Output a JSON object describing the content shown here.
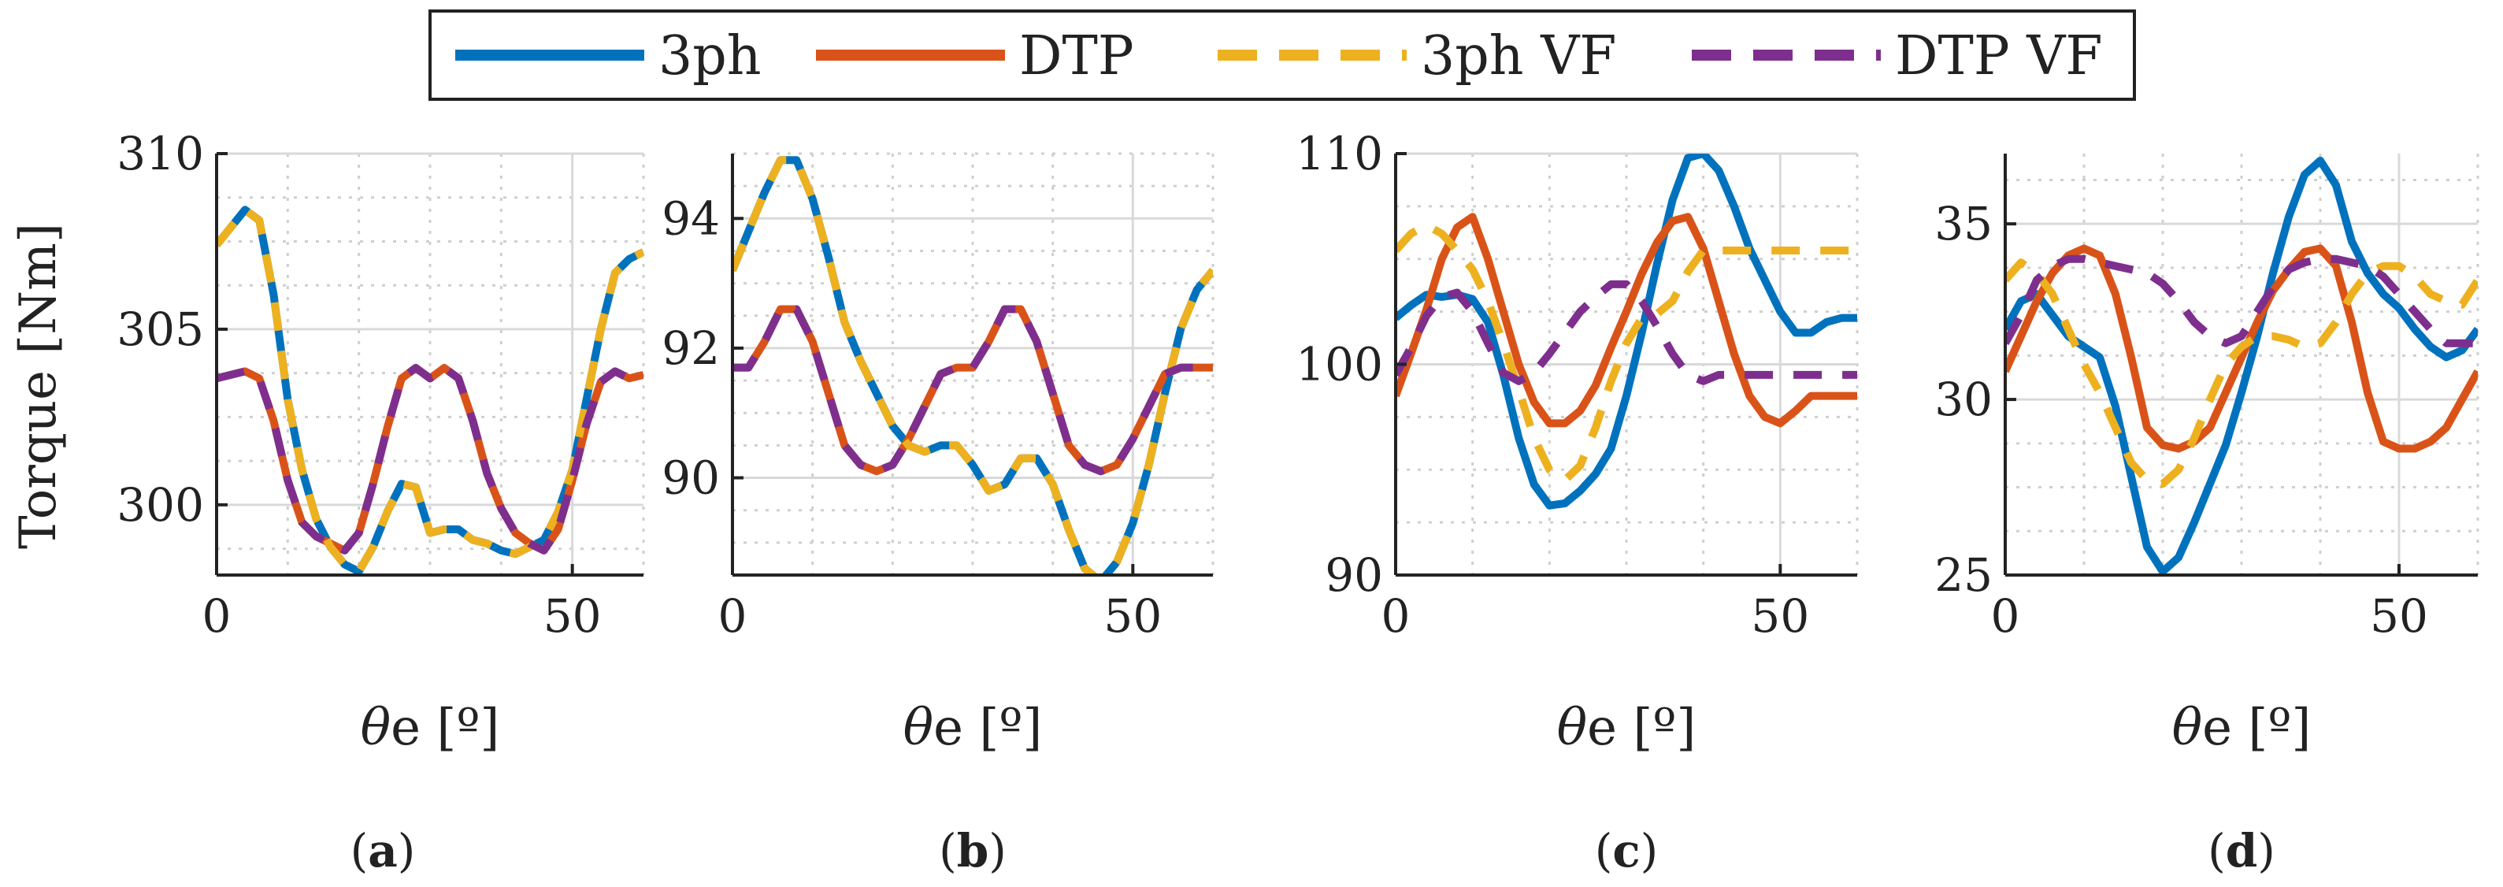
{
  "legend": {
    "entries": [
      {
        "label": "3ph",
        "color": "#0072BD",
        "dash": "solid"
      },
      {
        "label": "DTP",
        "color": "#D95319",
        "dash": "solid"
      },
      {
        "label": "3ph VF",
        "color": "#EDB120",
        "dash": "dashed"
      },
      {
        "label": "DTP VF",
        "color": "#7E2F8E",
        "dash": "dashed"
      }
    ]
  },
  "chart_data": [
    {
      "type": "line",
      "panel_label": "a",
      "ylabel": "Torque [Nm]",
      "xlabel_symbol": "θ",
      "xlabel_rest": "e [º]",
      "xlim": [
        0,
        60
      ],
      "ylim": [
        298,
        310
      ],
      "xticks": [
        0,
        50
      ],
      "yticks": [
        300,
        305,
        310
      ],
      "grid": true,
      "x": [
        0,
        4,
        6,
        8,
        10,
        12,
        14,
        16,
        18,
        20,
        22,
        24,
        26,
        28,
        30,
        32,
        34,
        36,
        38,
        40,
        42,
        44,
        46,
        48,
        50,
        52,
        54,
        56,
        58,
        60
      ],
      "series": [
        {
          "name": "3ph",
          "values": [
            307.4,
            308.4,
            308.1,
            306.0,
            303.0,
            301.0,
            299.6,
            298.8,
            298.3,
            298.1,
            298.8,
            299.8,
            300.6,
            300.5,
            299.2,
            299.3,
            299.3,
            299.0,
            298.9,
            298.7,
            298.6,
            298.8,
            299.0,
            299.8,
            301.0,
            303.0,
            305.0,
            306.6,
            307.0,
            307.2
          ]
        },
        {
          "name": "DTP",
          "values": [
            303.6,
            303.8,
            303.6,
            302.4,
            300.7,
            299.5,
            299.1,
            298.9,
            298.7,
            299.2,
            300.6,
            302.2,
            303.6,
            303.9,
            303.6,
            303.9,
            303.6,
            302.4,
            300.9,
            299.9,
            299.2,
            298.9,
            298.7,
            299.3,
            300.7,
            302.3,
            303.5,
            303.8,
            303.6,
            303.7
          ]
        },
        {
          "name": "3ph VF",
          "values": [
            307.4,
            308.4,
            308.1,
            306.0,
            303.0,
            301.0,
            299.6,
            298.8,
            298.3,
            298.1,
            298.8,
            299.8,
            300.6,
            300.5,
            299.2,
            299.3,
            299.3,
            299.0,
            298.9,
            298.7,
            298.6,
            298.8,
            299.0,
            299.8,
            301.0,
            303.0,
            305.0,
            306.6,
            307.0,
            307.2
          ]
        },
        {
          "name": "DTP VF",
          "values": [
            303.6,
            303.8,
            303.6,
            302.4,
            300.7,
            299.5,
            299.1,
            298.9,
            298.7,
            299.2,
            300.6,
            302.2,
            303.6,
            303.9,
            303.6,
            303.9,
            303.6,
            302.4,
            300.9,
            299.9,
            299.2,
            298.9,
            298.7,
            299.3,
            300.7,
            302.3,
            303.5,
            303.8,
            303.6,
            303.7
          ]
        }
      ]
    },
    {
      "type": "line",
      "panel_label": "b",
      "ylabel": "",
      "xlabel_symbol": "θ",
      "xlabel_rest": "e [º]",
      "xlim": [
        0,
        60
      ],
      "ylim": [
        88.5,
        95
      ],
      "xticks": [
        0,
        50
      ],
      "yticks": [
        90,
        92,
        94
      ],
      "grid": true,
      "x": [
        0,
        2,
        4,
        6,
        8,
        10,
        12,
        14,
        16,
        18,
        20,
        22,
        24,
        26,
        28,
        30,
        32,
        34,
        36,
        38,
        40,
        42,
        44,
        46,
        48,
        50,
        52,
        54,
        56,
        58,
        60
      ],
      "series": [
        {
          "name": "3ph",
          "values": [
            93.2,
            93.8,
            94.4,
            94.9,
            94.9,
            94.3,
            93.4,
            92.4,
            91.8,
            91.3,
            90.8,
            90.5,
            90.4,
            90.5,
            90.5,
            90.2,
            89.8,
            89.9,
            90.3,
            90.3,
            89.9,
            89.2,
            88.6,
            88.4,
            88.7,
            89.3,
            90.2,
            91.3,
            92.3,
            92.9,
            93.2
          ]
        },
        {
          "name": "DTP",
          "values": [
            91.7,
            91.7,
            92.1,
            92.6,
            92.6,
            92.1,
            91.3,
            90.5,
            90.2,
            90.1,
            90.2,
            90.6,
            91.1,
            91.6,
            91.7,
            91.7,
            92.1,
            92.6,
            92.6,
            92.1,
            91.3,
            90.5,
            90.2,
            90.1,
            90.2,
            90.6,
            91.1,
            91.6,
            91.7,
            91.7,
            91.7
          ]
        },
        {
          "name": "3ph VF",
          "values": [
            93.2,
            93.8,
            94.4,
            94.9,
            94.9,
            94.3,
            93.4,
            92.4,
            91.8,
            91.3,
            90.8,
            90.5,
            90.4,
            90.5,
            90.5,
            90.2,
            89.8,
            89.9,
            90.3,
            90.3,
            89.9,
            89.2,
            88.6,
            88.4,
            88.7,
            89.3,
            90.2,
            91.3,
            92.3,
            92.9,
            93.2
          ]
        },
        {
          "name": "DTP VF",
          "values": [
            91.7,
            91.7,
            92.1,
            92.6,
            92.6,
            92.1,
            91.3,
            90.5,
            90.2,
            90.1,
            90.2,
            90.6,
            91.1,
            91.6,
            91.7,
            91.7,
            92.1,
            92.6,
            92.6,
            92.1,
            91.3,
            90.5,
            90.2,
            90.1,
            90.2,
            90.6,
            91.1,
            91.6,
            91.7,
            91.7,
            91.7
          ]
        }
      ]
    },
    {
      "type": "line",
      "panel_label": "c",
      "ylabel": "",
      "xlabel_symbol": "θ",
      "xlabel_rest": "e [º]",
      "xlim": [
        0,
        60
      ],
      "ylim": [
        90,
        110
      ],
      "xticks": [
        0,
        50
      ],
      "yticks": [
        90,
        100,
        110
      ],
      "grid": true,
      "x": [
        0,
        2,
        4,
        6,
        8,
        10,
        12,
        14,
        16,
        18,
        20,
        22,
        24,
        26,
        28,
        30,
        32,
        34,
        36,
        38,
        40,
        42,
        44,
        46,
        48,
        50,
        52,
        54,
        56,
        58,
        60
      ],
      "series": [
        {
          "name": "3ph",
          "values": [
            102.2,
            102.8,
            103.3,
            103.2,
            103.3,
            103.1,
            102.0,
            99.5,
            96.5,
            94.3,
            93.3,
            93.4,
            94.0,
            94.8,
            96.0,
            98.5,
            101.5,
            104.8,
            107.8,
            109.8,
            110.0,
            109.2,
            107.5,
            105.5,
            104.0,
            102.5,
            101.5,
            101.5,
            102.0,
            102.2,
            102.2
          ]
        },
        {
          "name": "DTP",
          "values": [
            98.5,
            100.5,
            102.6,
            105.0,
            106.5,
            107.0,
            105.0,
            102.5,
            100.0,
            98.2,
            97.2,
            97.2,
            97.8,
            99.0,
            100.8,
            102.5,
            104.3,
            105.8,
            106.8,
            107.0,
            105.5,
            103.0,
            100.5,
            98.5,
            97.5,
            97.2,
            97.8,
            98.5,
            98.5,
            98.5,
            98.5
          ]
        },
        {
          "name": "3ph VF",
          "values": [
            105.4,
            106.2,
            106.6,
            106.2,
            105.4,
            104.5,
            103.0,
            101.0,
            98.8,
            96.5,
            95.0,
            94.5,
            95.2,
            97.0,
            99.2,
            101.0,
            102.2,
            102.4,
            103.0,
            104.4,
            105.4,
            105.4,
            105.4,
            105.4,
            105.4,
            105.4,
            105.4,
            105.4,
            105.4,
            105.4,
            105.4
          ]
        },
        {
          "name": "DTP VF",
          "values": [
            99.5,
            100.8,
            102.3,
            103.2,
            103.4,
            102.5,
            101.0,
            99.6,
            99.2,
            99.6,
            100.5,
            101.5,
            102.5,
            103.2,
            103.8,
            103.8,
            103.0,
            101.8,
            100.5,
            99.5,
            99.2,
            99.5,
            99.5,
            99.5,
            99.5,
            99.5,
            99.5,
            99.5,
            99.5,
            99.5,
            99.5
          ]
        }
      ]
    },
    {
      "type": "line",
      "panel_label": "d",
      "ylabel": "",
      "xlabel_symbol": "θ",
      "xlabel_rest": "e [º]",
      "xlim": [
        0,
        60
      ],
      "ylim": [
        25,
        37
      ],
      "xticks": [
        0,
        50
      ],
      "yticks": [
        25,
        30,
        35
      ],
      "grid": true,
      "x": [
        0,
        2,
        4,
        6,
        8,
        10,
        12,
        14,
        16,
        18,
        20,
        22,
        24,
        26,
        28,
        30,
        32,
        34,
        36,
        38,
        40,
        42,
        44,
        46,
        48,
        50,
        52,
        54,
        56,
        58,
        60
      ],
      "series": [
        {
          "name": "3ph",
          "values": [
            32.0,
            32.8,
            33.0,
            32.4,
            31.8,
            31.5,
            31.2,
            29.8,
            27.8,
            25.8,
            25.1,
            25.5,
            26.5,
            27.6,
            28.7,
            30.2,
            31.8,
            33.6,
            35.2,
            36.4,
            36.8,
            36.1,
            34.5,
            33.6,
            33.0,
            32.6,
            32.0,
            31.5,
            31.2,
            31.4,
            32.0
          ]
        },
        {
          "name": "DTP",
          "values": [
            30.8,
            31.8,
            32.8,
            33.6,
            34.1,
            34.3,
            34.1,
            33.0,
            31.2,
            29.2,
            28.7,
            28.6,
            28.8,
            29.2,
            30.2,
            31.2,
            32.2,
            33.1,
            33.7,
            34.2,
            34.3,
            33.8,
            32.2,
            30.2,
            28.8,
            28.6,
            28.6,
            28.8,
            29.2,
            30.0,
            30.8
          ]
        },
        {
          "name": "3ph VF",
          "values": [
            33.4,
            33.9,
            33.6,
            33.0,
            32.0,
            31.0,
            30.2,
            29.2,
            28.2,
            27.7,
            27.6,
            28.0,
            28.9,
            30.0,
            31.0,
            31.5,
            31.8,
            31.8,
            31.7,
            31.5,
            31.6,
            32.2,
            33.0,
            33.6,
            33.8,
            33.8,
            33.5,
            33.0,
            32.8,
            32.7,
            33.4
          ]
        },
        {
          "name": "DTP VF",
          "values": [
            31.6,
            32.4,
            33.4,
            33.8,
            34.0,
            34.0,
            33.9,
            33.8,
            33.7,
            33.6,
            33.3,
            32.8,
            32.2,
            31.8,
            31.6,
            31.8,
            32.5,
            33.2,
            33.7,
            33.9,
            34.0,
            34.0,
            33.9,
            33.8,
            33.5,
            33.0,
            32.5,
            32.0,
            31.6,
            31.6,
            31.6
          ]
        }
      ]
    }
  ]
}
